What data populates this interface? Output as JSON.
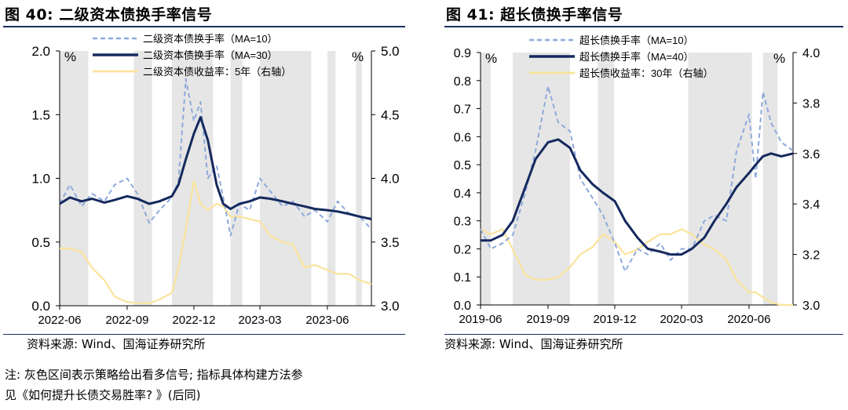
{
  "left": {
    "figure_title": "图 40:  二级资本债换手率信号",
    "source": "资料来源: Wind、国海证券研究所",
    "note_line1": "注: 灰色区间表示策略给出看多信号; 指标具体构建方法参",
    "note_line2": "见《如何提升长债交易胜率? 》(后同)"
  },
  "right": {
    "figure_title": "图 41:  超长债换手率信号",
    "source": "资料来源: Wind、国海证券研究所"
  },
  "colors": {
    "ma_short": "#8eaadb",
    "ma_long": "#15295e",
    "yield": "#fbe39c",
    "shade": "#e6e6e6",
    "rule": "#1a2f5c"
  },
  "chart_data": [
    {
      "type": "line",
      "left_unit_label": "%",
      "right_unit_label": "%",
      "ylim": [
        0,
        2.0
      ],
      "y_ticks": [
        "0.0",
        "0.5",
        "1.0",
        "1.5",
        "2.0"
      ],
      "y2lim": [
        3.0,
        5.0
      ],
      "y2_ticks": [
        "3.0",
        "3.5",
        "4.0",
        "4.5",
        "5.0"
      ],
      "xlim": [
        "2022-06",
        "2023-07-31"
      ],
      "x_ticks": [
        "2022-06",
        "2022-09",
        "2022-12",
        "2023-03",
        "2023-06"
      ],
      "legend": "top-right",
      "shaded_ranges": [
        [
          "2022-06-01",
          "2022-07-10"
        ],
        [
          "2022-09-10",
          "2022-10-05"
        ],
        [
          "2022-11-01",
          "2022-12-27"
        ],
        [
          "2023-01-20",
          "2023-02-05"
        ],
        [
          "2023-03-01",
          "2023-05-10"
        ],
        [
          "2023-06-01",
          "2023-06-12"
        ],
        [
          "2023-07-10",
          "2023-07-18"
        ]
      ],
      "series": [
        {
          "name": "二级资本债换手率（MA=10）",
          "axis": "left",
          "style": "dashed",
          "x": [
            "2022-06-01",
            "2022-06-15",
            "2022-07-01",
            "2022-07-15",
            "2022-08-01",
            "2022-08-15",
            "2022-09-01",
            "2022-09-15",
            "2022-10-01",
            "2022-10-15",
            "2022-11-01",
            "2022-11-10",
            "2022-11-20",
            "2022-12-01",
            "2022-12-10",
            "2022-12-20",
            "2023-01-01",
            "2023-01-10",
            "2023-01-20",
            "2023-02-01",
            "2023-02-15",
            "2023-03-01",
            "2023-03-15",
            "2023-04-01",
            "2023-04-15",
            "2023-05-01",
            "2023-05-15",
            "2023-06-01",
            "2023-06-15",
            "2023-07-01",
            "2023-07-15",
            "2023-07-31"
          ],
          "values": [
            0.8,
            0.95,
            0.78,
            0.88,
            0.82,
            0.95,
            1.0,
            0.88,
            0.65,
            0.75,
            0.85,
            0.98,
            1.78,
            1.45,
            1.6,
            1.0,
            1.1,
            0.85,
            0.55,
            0.8,
            0.75,
            1.0,
            0.9,
            0.78,
            0.82,
            0.7,
            0.75,
            0.66,
            0.82,
            0.72,
            0.7,
            0.6
          ]
        },
        {
          "name": "二级资本债换手率（MA=30）",
          "axis": "left",
          "style": "solid",
          "x": [
            "2022-06-01",
            "2022-06-15",
            "2022-07-01",
            "2022-07-15",
            "2022-08-01",
            "2022-08-15",
            "2022-09-01",
            "2022-09-15",
            "2022-10-01",
            "2022-10-15",
            "2022-11-01",
            "2022-11-10",
            "2022-11-20",
            "2022-12-01",
            "2022-12-10",
            "2022-12-20",
            "2023-01-01",
            "2023-01-10",
            "2023-01-20",
            "2023-02-01",
            "2023-02-15",
            "2023-03-01",
            "2023-03-15",
            "2023-04-01",
            "2023-04-15",
            "2023-05-01",
            "2023-05-15",
            "2023-06-01",
            "2023-06-15",
            "2023-07-01",
            "2023-07-15",
            "2023-07-31"
          ],
          "values": [
            0.8,
            0.85,
            0.82,
            0.84,
            0.81,
            0.83,
            0.86,
            0.84,
            0.8,
            0.82,
            0.86,
            0.95,
            1.15,
            1.35,
            1.48,
            1.3,
            0.95,
            0.8,
            0.76,
            0.8,
            0.82,
            0.85,
            0.84,
            0.82,
            0.8,
            0.78,
            0.76,
            0.75,
            0.74,
            0.72,
            0.7,
            0.68
          ]
        },
        {
          "name": "二级资本债收益率：5年（右轴）",
          "axis": "right",
          "style": "solid",
          "x": [
            "2022-06-01",
            "2022-06-15",
            "2022-07-01",
            "2022-07-15",
            "2022-08-01",
            "2022-08-15",
            "2022-09-01",
            "2022-09-15",
            "2022-10-01",
            "2022-10-15",
            "2022-11-01",
            "2022-11-10",
            "2022-11-20",
            "2022-12-01",
            "2022-12-10",
            "2022-12-20",
            "2023-01-01",
            "2023-01-10",
            "2023-01-20",
            "2023-02-01",
            "2023-02-15",
            "2023-03-01",
            "2023-03-15",
            "2023-04-01",
            "2023-04-15",
            "2023-05-01",
            "2023-05-15",
            "2023-06-01",
            "2023-06-15",
            "2023-07-01",
            "2023-07-15",
            "2023-07-31"
          ],
          "values": [
            3.45,
            3.45,
            3.42,
            3.3,
            3.2,
            3.07,
            3.03,
            3.02,
            3.02,
            3.05,
            3.1,
            3.3,
            3.6,
            3.98,
            3.8,
            3.75,
            3.8,
            3.78,
            3.7,
            3.7,
            3.68,
            3.66,
            3.55,
            3.5,
            3.48,
            3.3,
            3.32,
            3.28,
            3.25,
            3.25,
            3.2,
            3.17
          ]
        }
      ]
    },
    {
      "type": "line",
      "left_unit_label": "%",
      "right_unit_label": "%",
      "ylim": [
        0,
        0.9
      ],
      "y_ticks": [
        "0.0",
        "0.1",
        "0.2",
        "0.3",
        "0.4",
        "0.5",
        "0.6",
        "0.7",
        "0.8",
        "0.9"
      ],
      "y2lim": [
        3.0,
        4.0
      ],
      "y2_ticks": [
        "3.0",
        "3.2",
        "3.4",
        "3.6",
        "3.8",
        "4.0"
      ],
      "xlim": [
        "2019-06",
        "2020-07-31"
      ],
      "x_ticks": [
        "2019-06",
        "2019-09",
        "2019-12",
        "2020-03",
        "2020-06"
      ],
      "legend": "top-left",
      "shaded_ranges": [
        [
          "2019-06-01",
          "2019-06-15"
        ],
        [
          "2019-07-15",
          "2019-10-01"
        ],
        [
          "2019-11-08",
          "2019-11-30"
        ],
        [
          "2020-03-10",
          "2020-06-05"
        ],
        [
          "2020-06-20",
          "2020-07-10"
        ]
      ],
      "series": [
        {
          "name": "超长债换手率（MA=10）",
          "axis": "left",
          "style": "dashed",
          "x": [
            "2019-06-01",
            "2019-06-15",
            "2019-07-01",
            "2019-07-15",
            "2019-08-01",
            "2019-08-15",
            "2019-09-01",
            "2019-09-15",
            "2019-10-01",
            "2019-10-15",
            "2019-11-01",
            "2019-11-15",
            "2019-12-01",
            "2019-12-15",
            "2020-01-01",
            "2020-01-15",
            "2020-02-01",
            "2020-02-15",
            "2020-03-01",
            "2020-03-15",
            "2020-04-01",
            "2020-04-15",
            "2020-05-01",
            "2020-05-15",
            "2020-06-01",
            "2020-06-10",
            "2020-06-20",
            "2020-07-01",
            "2020-07-15",
            "2020-07-31"
          ],
          "values": [
            0.27,
            0.2,
            0.22,
            0.25,
            0.4,
            0.55,
            0.78,
            0.65,
            0.62,
            0.45,
            0.38,
            0.32,
            0.22,
            0.12,
            0.2,
            0.18,
            0.22,
            0.16,
            0.2,
            0.2,
            0.3,
            0.32,
            0.3,
            0.55,
            0.68,
            0.45,
            0.76,
            0.65,
            0.58,
            0.55
          ]
        },
        {
          "name": "超长债换手率（MA=40）",
          "axis": "left",
          "style": "solid",
          "x": [
            "2019-06-01",
            "2019-06-15",
            "2019-07-01",
            "2019-07-15",
            "2019-08-01",
            "2019-08-15",
            "2019-09-01",
            "2019-09-15",
            "2019-10-01",
            "2019-10-15",
            "2019-11-01",
            "2019-11-15",
            "2019-12-01",
            "2019-12-15",
            "2020-01-01",
            "2020-01-15",
            "2020-02-01",
            "2020-02-15",
            "2020-03-01",
            "2020-03-15",
            "2020-04-01",
            "2020-04-15",
            "2020-05-01",
            "2020-05-15",
            "2020-06-01",
            "2020-06-10",
            "2020-06-20",
            "2020-07-01",
            "2020-07-15",
            "2020-07-31"
          ],
          "values": [
            0.23,
            0.23,
            0.25,
            0.3,
            0.42,
            0.52,
            0.58,
            0.59,
            0.56,
            0.48,
            0.43,
            0.4,
            0.37,
            0.3,
            0.24,
            0.2,
            0.19,
            0.18,
            0.18,
            0.2,
            0.24,
            0.3,
            0.36,
            0.42,
            0.47,
            0.5,
            0.53,
            0.54,
            0.53,
            0.54
          ]
        },
        {
          "name": "超长债收益率：30年（右轴）",
          "axis": "right",
          "style": "solid",
          "x": [
            "2019-06-01",
            "2019-06-15",
            "2019-07-01",
            "2019-07-15",
            "2019-08-01",
            "2019-08-15",
            "2019-09-01",
            "2019-09-15",
            "2019-10-01",
            "2019-10-15",
            "2019-11-01",
            "2019-11-15",
            "2019-12-01",
            "2019-12-15",
            "2020-01-01",
            "2020-01-15",
            "2020-02-01",
            "2020-02-15",
            "2020-03-01",
            "2020-03-15",
            "2020-04-01",
            "2020-04-15",
            "2020-05-01",
            "2020-05-15",
            "2020-06-01",
            "2020-06-10",
            "2020-06-20",
            "2020-07-01",
            "2020-07-15",
            "2020-07-31"
          ],
          "values": [
            3.3,
            3.28,
            3.3,
            3.22,
            3.12,
            3.1,
            3.1,
            3.11,
            3.15,
            3.2,
            3.23,
            3.28,
            3.25,
            3.2,
            3.22,
            3.25,
            3.28,
            3.28,
            3.3,
            3.28,
            3.24,
            3.22,
            3.18,
            3.1,
            3.05,
            3.05,
            3.03,
            3.01,
            3.0,
            3.0
          ]
        }
      ]
    }
  ]
}
